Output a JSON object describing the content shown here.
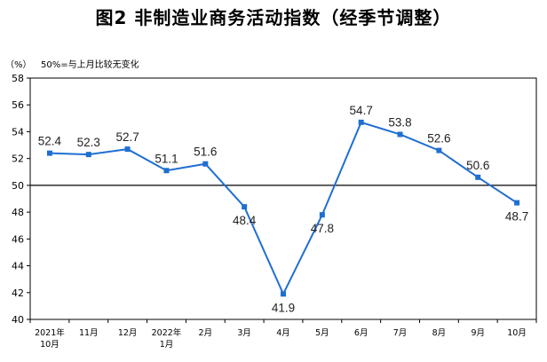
{
  "chart_data": {
    "type": "line",
    "title": "图2  非制造业商务活动指数（经季节调整）",
    "unit": "（%）",
    "note": "50%=与上月比较无变化",
    "categories": [
      [
        "2021年",
        "10月"
      ],
      [
        "11月"
      ],
      [
        "12月"
      ],
      [
        "2022年",
        "1月"
      ],
      [
        "2月"
      ],
      [
        "3月"
      ],
      [
        "4月"
      ],
      [
        "5月"
      ],
      [
        "6月"
      ],
      [
        "7月"
      ],
      [
        "8月"
      ],
      [
        "9月"
      ],
      [
        "10月"
      ]
    ],
    "values": [
      52.4,
      52.3,
      52.7,
      51.1,
      51.6,
      48.4,
      41.9,
      47.8,
      54.7,
      53.8,
      52.6,
      50.6,
      48.7
    ],
    "label_positions": [
      "above",
      "above",
      "above",
      "above",
      "above",
      "below",
      "below",
      "below",
      "above",
      "above",
      "above",
      "above",
      "below"
    ],
    "ylim": [
      40,
      58
    ],
    "yticks": [
      40,
      42,
      44,
      46,
      48,
      50,
      52,
      54,
      56,
      58
    ],
    "reference_line": 50,
    "grid": false,
    "line_color": "#1f6fd1",
    "marker_color": "#1f6fd1"
  }
}
